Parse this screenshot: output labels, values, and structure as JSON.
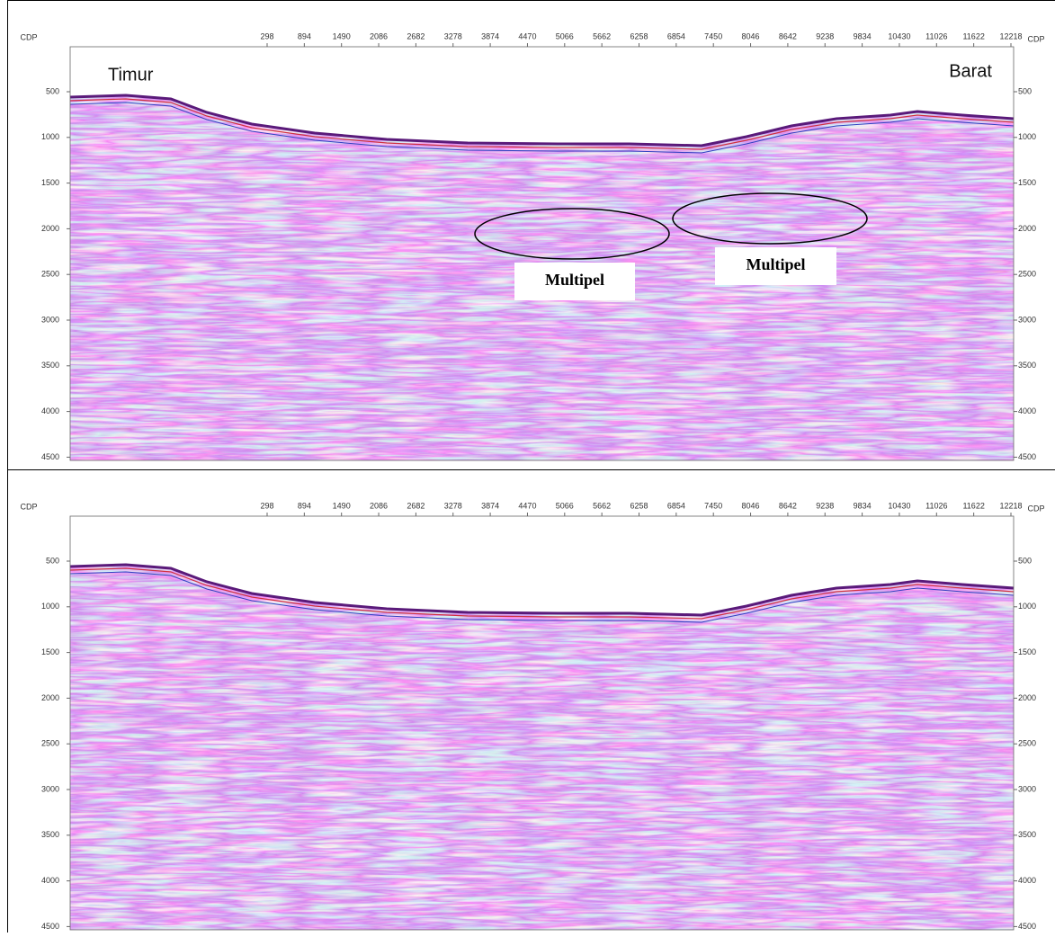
{
  "panels": [
    {
      "x_axis_label_left": "CDP",
      "x_axis_label_right": "CDP",
      "x_ticks": [
        "298",
        "894",
        "1490",
        "2086",
        "2682",
        "3278",
        "3874",
        "4470",
        "5066",
        "5662",
        "6258",
        "6854",
        "7450",
        "8046",
        "8642",
        "9238",
        "9834",
        "10430",
        "11026",
        "11622",
        "12218"
      ],
      "y_ticks": [
        "500",
        "1000",
        "1500",
        "2000",
        "2500",
        "3000",
        "3500",
        "4000",
        "4500"
      ],
      "annotations": [
        "Timur",
        "Barat",
        "Multipel",
        "Multipel"
      ]
    },
    {
      "x_axis_label_left": "CDP",
      "x_axis_label_right": "CDP",
      "x_ticks": [
        "298",
        "894",
        "1490",
        "2086",
        "2682",
        "3278",
        "3874",
        "4470",
        "5066",
        "5662",
        "6258",
        "6854",
        "7450",
        "8046",
        "8642",
        "9238",
        "9834",
        "10430",
        "11026",
        "11622",
        "12218"
      ],
      "y_ticks": [
        "500",
        "1000",
        "1500",
        "2000",
        "2500",
        "3000",
        "3500",
        "4000",
        "4500"
      ],
      "annotations": []
    }
  ]
}
